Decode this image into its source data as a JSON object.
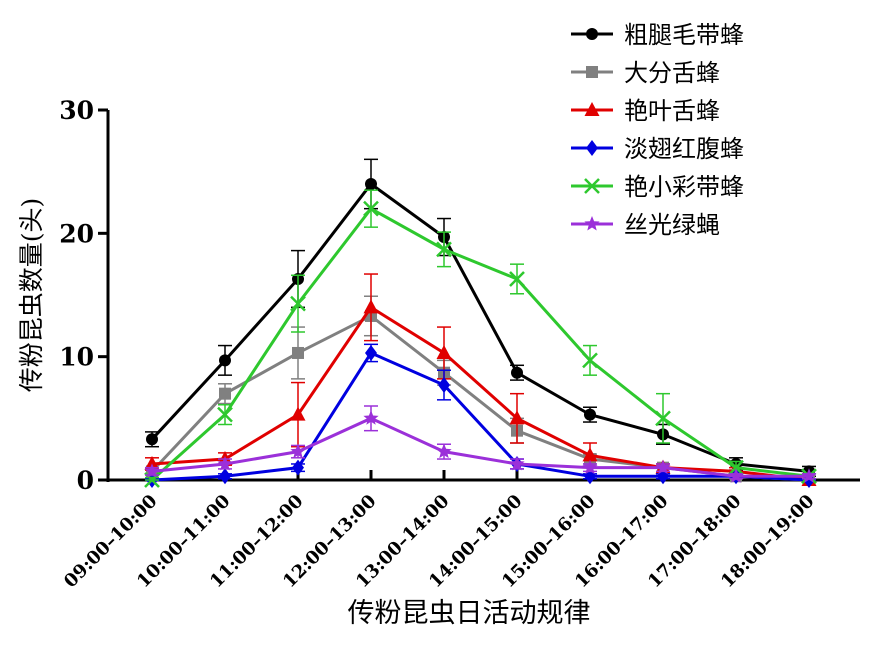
{
  "chart_data": {
    "type": "line",
    "title": "",
    "xlabel": "传粉昆虫日活动规律",
    "ylabel": "传粉昆虫数量(头)",
    "ylim": [
      0,
      30
    ],
    "yticks": [
      0,
      10,
      20,
      30
    ],
    "grid": false,
    "legend_position": "top-right",
    "categories": [
      "09:00–10:00",
      "10:00–11:00",
      "11:00–12:00",
      "12:00–13:00",
      "13:00–14:00",
      "14:00–15:00",
      "15:00–16:00",
      "16:00–17:00",
      "17:00–18:00",
      "18:00–19:00"
    ],
    "series": [
      {
        "name": "粗腿毛带蜂",
        "color": "#000000",
        "marker": "circle",
        "values": [
          3.3,
          9.7,
          16.3,
          24.0,
          19.7,
          8.7,
          5.3,
          3.7,
          1.3,
          0.7
        ],
        "errors": [
          0.6,
          1.2,
          2.3,
          2.0,
          1.5,
          0.6,
          0.6,
          0.8,
          0.5,
          0.4
        ]
      },
      {
        "name": "大分舌蜂",
        "color": "#808080",
        "marker": "square",
        "values": [
          0.7,
          7.0,
          10.3,
          13.3,
          8.7,
          4.0,
          1.7,
          1.0,
          0.3,
          0.0
        ],
        "errors": [
          0.3,
          0.8,
          2.1,
          1.6,
          1.0,
          1.0,
          0.4,
          0.3,
          0.2,
          0.1
        ]
      },
      {
        "name": "艳叶舌蜂",
        "color": "#e00000",
        "marker": "triangle",
        "values": [
          1.3,
          1.7,
          5.3,
          14.0,
          10.3,
          5.0,
          2.0,
          1.0,
          0.7,
          0.0
        ],
        "errors": [
          0.5,
          0.5,
          2.6,
          2.7,
          2.1,
          2.0,
          1.0,
          0.3,
          0.3,
          0.1
        ]
      },
      {
        "name": "淡翅红腹蜂",
        "color": "#0000e0",
        "marker": "diamond",
        "values": [
          0.0,
          0.3,
          1.0,
          10.3,
          7.7,
          1.3,
          0.3,
          0.3,
          0.3,
          0.0
        ],
        "errors": [
          0.1,
          0.2,
          0.3,
          0.7,
          1.2,
          0.4,
          0.2,
          0.2,
          0.2,
          0.1
        ]
      },
      {
        "name": "艳小彩带蜂",
        "color": "#2ec82e",
        "marker": "x",
        "values": [
          0.0,
          5.3,
          14.3,
          22.0,
          18.7,
          16.3,
          9.7,
          5.0,
          1.0,
          0.3
        ],
        "errors": [
          0.2,
          0.8,
          2.3,
          1.5,
          1.4,
          1.2,
          1.2,
          2.0,
          0.5,
          0.2
        ]
      },
      {
        "name": "丝光绿蝇",
        "color": "#9b30d9",
        "marker": "star",
        "values": [
          0.7,
          1.3,
          2.3,
          5.0,
          2.3,
          1.3,
          1.0,
          1.0,
          0.3,
          0.3
        ],
        "errors": [
          0.3,
          0.4,
          0.5,
          1.0,
          0.6,
          0.4,
          0.3,
          0.3,
          0.2,
          0.2
        ]
      }
    ]
  }
}
